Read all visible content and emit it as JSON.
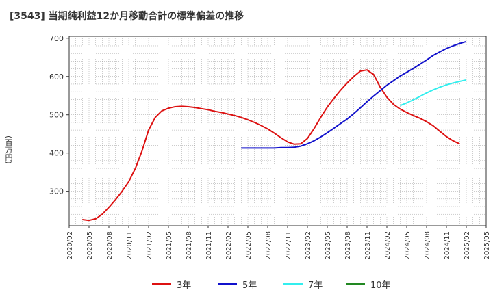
{
  "chart_data": {
    "type": "line",
    "title": "[3543]  当期純利益12か月移動合計の標準偏差の推移",
    "ylabel": "(百万円)",
    "xlabel": "",
    "ylim": [
      210,
      705
    ],
    "yticks": [
      300,
      400,
      500,
      600,
      700
    ],
    "x_start": "2020-02",
    "x_end": "2025-05",
    "xtick_labels": [
      "2020/02",
      "2020/05",
      "2020/08",
      "2020/11",
      "2021/02",
      "2021/05",
      "2021/08",
      "2021/11",
      "2022/02",
      "2022/05",
      "2022/08",
      "2022/11",
      "2023/02",
      "2023/05",
      "2023/08",
      "2023/11",
      "2024/02",
      "2024/05",
      "2024/08",
      "2024/11",
      "2025/02",
      "2025/05"
    ],
    "colors": {
      "3y": "#dd1111",
      "5y": "#1111cc",
      "7y": "#33eeee",
      "10y": "#228822"
    },
    "series": [
      {
        "name": "3年",
        "key": "3y",
        "start": "2020-04",
        "values": [
          226,
          224,
          228,
          240,
          258,
          278,
          300,
          325,
          360,
          405,
          460,
          493,
          510,
          517,
          521,
          522,
          521,
          519,
          516,
          513,
          509,
          506,
          502,
          498,
          493,
          487,
          480,
          472,
          463,
          452,
          440,
          429,
          423,
          424,
          438,
          464,
          493,
          520,
          543,
          564,
          583,
          600,
          614,
          617,
          605,
          572,
          546,
          527,
          515,
          506,
          498,
          491,
          482,
          471,
          457,
          443,
          432,
          424
        ]
      },
      {
        "name": "5年",
        "key": "5y",
        "start": "2022-04",
        "values": [
          413,
          413,
          413,
          413,
          413,
          413,
          414,
          414,
          415,
          418,
          424,
          432,
          442,
          453,
          465,
          477,
          489,
          503,
          518,
          534,
          549,
          563,
          577,
          589,
          601,
          611,
          621,
          632,
          643,
          655,
          664,
          673,
          680,
          686,
          691
        ]
      },
      {
        "name": "7年",
        "key": "7y",
        "start": "2024-04",
        "values": [
          524,
          531,
          539,
          548,
          557,
          565,
          572,
          578,
          583,
          587,
          591
        ]
      },
      {
        "name": "10年",
        "key": "10y",
        "start": "2025-02",
        "values": []
      }
    ]
  }
}
